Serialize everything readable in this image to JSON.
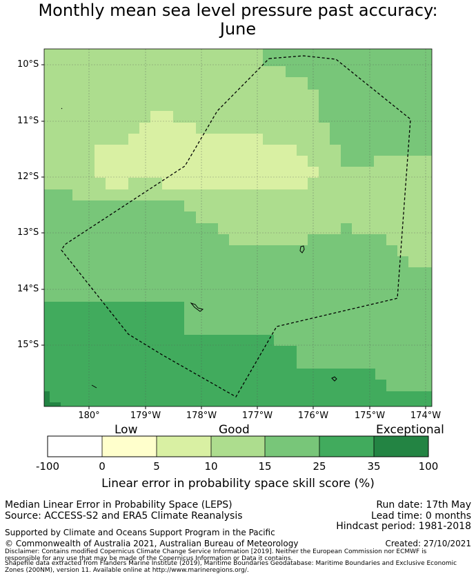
{
  "title_line1": "Monthly mean sea level pressure past accuracy:",
  "title_line2": "June",
  "lat_labels": [
    "10°S",
    "11°S",
    "12°S",
    "13°S",
    "14°S",
    "15°S"
  ],
  "lon_labels": [
    "180°",
    "179°W",
    "178°W",
    "177°W",
    "176°W",
    "175°W",
    "174°W"
  ],
  "colorbar": {
    "category_labels": [
      "Low",
      "Good",
      "Exceptional"
    ],
    "ticks": [
      "-100",
      "0",
      "5",
      "10",
      "15",
      "25",
      "35",
      "100"
    ],
    "colors": [
      "#ffffff",
      "#ffffcc",
      "#d9f0a3",
      "#addd8e",
      "#78c679",
      "#41ab5d",
      "#238443"
    ],
    "label": "Linear error in probability space skill score (%)"
  },
  "footer": {
    "metric": "Median Linear Error in Probability Space (LEPS)",
    "source": "Source: ACCESS-S2 and ERA5 Climate Reanalysis",
    "support": "Supported by Climate and Oceans Support Program in the Pacific",
    "copyright": "© Commonwealth of Australia 2021, Australian Bureau of Meteorology",
    "run_date": "Run date: 17th May",
    "lead_time": "Lead time: 0 months",
    "hindcast": "Hindcast period: 1981-2018",
    "created": "Created: 27/10/2021",
    "disclaimer1": "Disclaimer: Contains modified Copernicus Climate Change Service Information [2019]. Neither the European Commission nor ECMWF is",
    "disclaimer2": "responsible for any use that may be made of the Copernicus Information or Data it contains.",
    "disclaimer3": "Shapefile data extracted from Flanders Marine Institute (2019), Maritime Boundaries Geodatabase: Maritime Boundaries and Exclusive Economic",
    "disclaimer4": "Zones (200NM), version 11. Available online at http://www.marineregions.org/."
  }
}
